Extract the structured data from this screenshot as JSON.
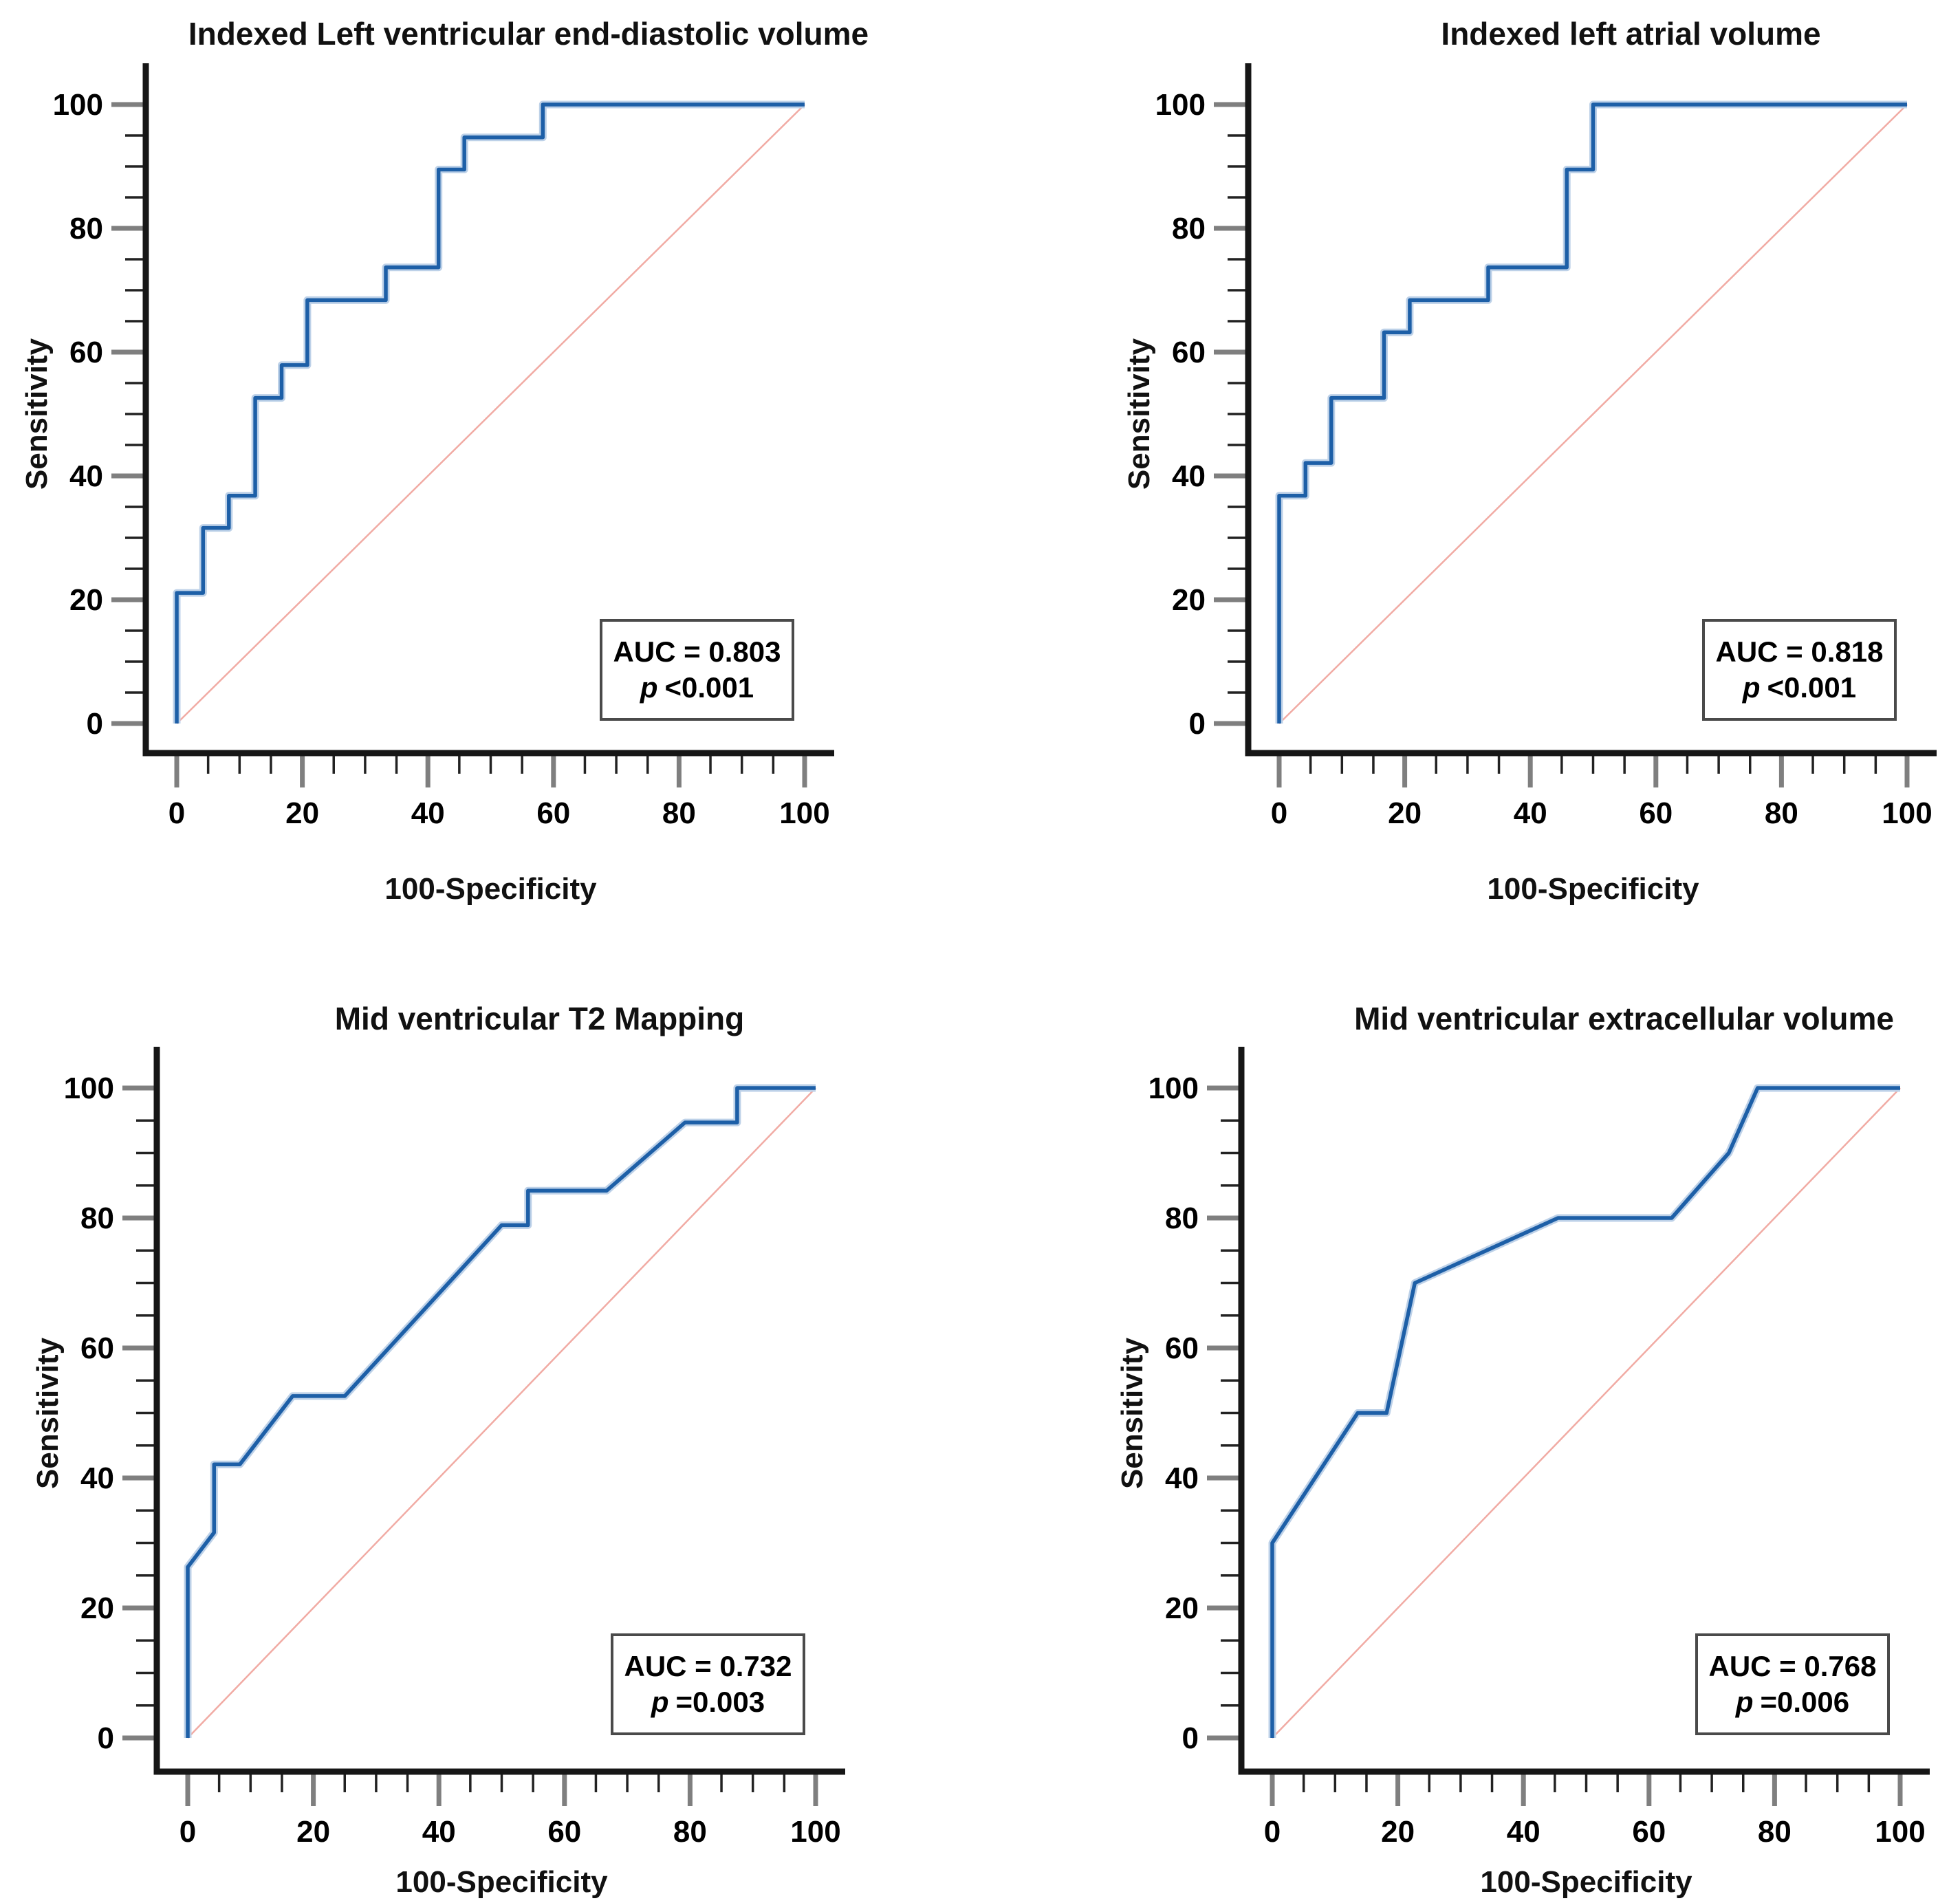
{
  "figure": {
    "description_title": "ROC curve panels",
    "background": "#ffffff"
  },
  "colors": {
    "curve": "#1d5fa7",
    "curve_halo": "#bdd1e8",
    "diagonal": "#f1aba4",
    "axis": "#161616",
    "major_tick": "#7f7f7f",
    "minor_tick": "#222222",
    "text": "#000000",
    "auc_box_border": "#4a4a4a"
  },
  "axis": {
    "x_label": "100-Specificity",
    "y_label": "Sensitivity",
    "x_ticks": [
      0,
      20,
      40,
      60,
      80,
      100
    ],
    "y_ticks": [
      0,
      20,
      40,
      60,
      80,
      100
    ],
    "minor_tick_step": 5,
    "x_range": [
      0,
      100
    ],
    "y_range": [
      0,
      100
    ],
    "grid": "off",
    "legend": "none"
  },
  "chart_data": [
    {
      "type": "line",
      "title": "Indexed Left ventricular end-diastolic volume",
      "xlabel": "100-Specificity",
      "ylabel": "Sensitivity",
      "xlim": [
        0,
        100
      ],
      "ylim": [
        0,
        100
      ],
      "auc": 0.803,
      "auc_label": "AUC = 0.803",
      "p_symbol": "p",
      "p_value": "<0.001",
      "series": [
        {
          "name": "ROC curve",
          "x": [
            0,
            0,
            4.2,
            4.2,
            8.3,
            8.3,
            12.5,
            12.5,
            16.7,
            16.7,
            20.8,
            20.8,
            33.3,
            33.3,
            41.7,
            41.7,
            45.8,
            45.8,
            58.3,
            58.3,
            100
          ],
          "y": [
            0,
            21.1,
            21.1,
            31.6,
            31.6,
            36.8,
            36.8,
            52.6,
            52.6,
            57.9,
            57.9,
            68.4,
            68.4,
            73.7,
            73.7,
            89.5,
            89.5,
            94.7,
            94.7,
            100,
            100
          ]
        },
        {
          "name": "reference diagonal",
          "x": [
            0,
            100
          ],
          "y": [
            0,
            100
          ]
        }
      ]
    },
    {
      "type": "line",
      "title": "Indexed left atrial volume",
      "xlabel": "100-Specificity",
      "ylabel": "Sensitivity",
      "xlim": [
        0,
        100
      ],
      "ylim": [
        0,
        100
      ],
      "auc": 0.818,
      "auc_label": "AUC = 0.818",
      "p_symbol": "p",
      "p_value": "<0.001",
      "series": [
        {
          "name": "ROC curve",
          "x": [
            0,
            0,
            4.2,
            4.2,
            8.3,
            8.3,
            16.7,
            16.7,
            20.8,
            20.8,
            33.3,
            33.3,
            45.8,
            45.8,
            50,
            50,
            100
          ],
          "y": [
            0,
            36.8,
            36.8,
            42.1,
            42.1,
            52.6,
            52.6,
            63.2,
            63.2,
            68.4,
            68.4,
            73.7,
            73.7,
            89.5,
            89.5,
            100,
            100
          ]
        },
        {
          "name": "reference diagonal",
          "x": [
            0,
            100
          ],
          "y": [
            0,
            100
          ]
        }
      ]
    },
    {
      "type": "line",
      "title": "Mid ventricular T2 Mapping",
      "xlabel": "100-Specificity",
      "ylabel": "Sensitivity",
      "xlim": [
        0,
        100
      ],
      "ylim": [
        0,
        100
      ],
      "auc": 0.732,
      "auc_label": "AUC = 0.732",
      "p_symbol": "p",
      "p_value": "=0.003",
      "series": [
        {
          "name": "ROC curve",
          "x": [
            0,
            0,
            4.2,
            4.2,
            8.3,
            16.7,
            25,
            50,
            54.2,
            54.2,
            66.7,
            79.2,
            87.5,
            87.5,
            100
          ],
          "y": [
            0,
            26.3,
            31.6,
            42.1,
            42.1,
            52.6,
            52.6,
            78.9,
            78.9,
            84.2,
            84.2,
            94.7,
            94.7,
            100,
            100
          ]
        },
        {
          "name": "reference diagonal",
          "x": [
            0,
            100
          ],
          "y": [
            0,
            100
          ]
        }
      ]
    },
    {
      "type": "line",
      "title": "Mid ventricular extracellular volume",
      "xlabel": "100-Specificity",
      "ylabel": "Sensitivity",
      "xlim": [
        0,
        100
      ],
      "ylim": [
        0,
        100
      ],
      "auc": 0.768,
      "auc_label": "AUC = 0.768",
      "p_symbol": "p",
      "p_value": "=0.006",
      "series": [
        {
          "name": "ROC curve",
          "x": [
            0,
            0,
            13.6,
            18.2,
            22.7,
            45.5,
            63.6,
            72.7,
            77.3,
            100
          ],
          "y": [
            0,
            30,
            50,
            50,
            70,
            80,
            80,
            90,
            100,
            100
          ]
        },
        {
          "name": "reference diagonal",
          "x": [
            0,
            100
          ],
          "y": [
            0,
            100
          ]
        }
      ]
    }
  ]
}
